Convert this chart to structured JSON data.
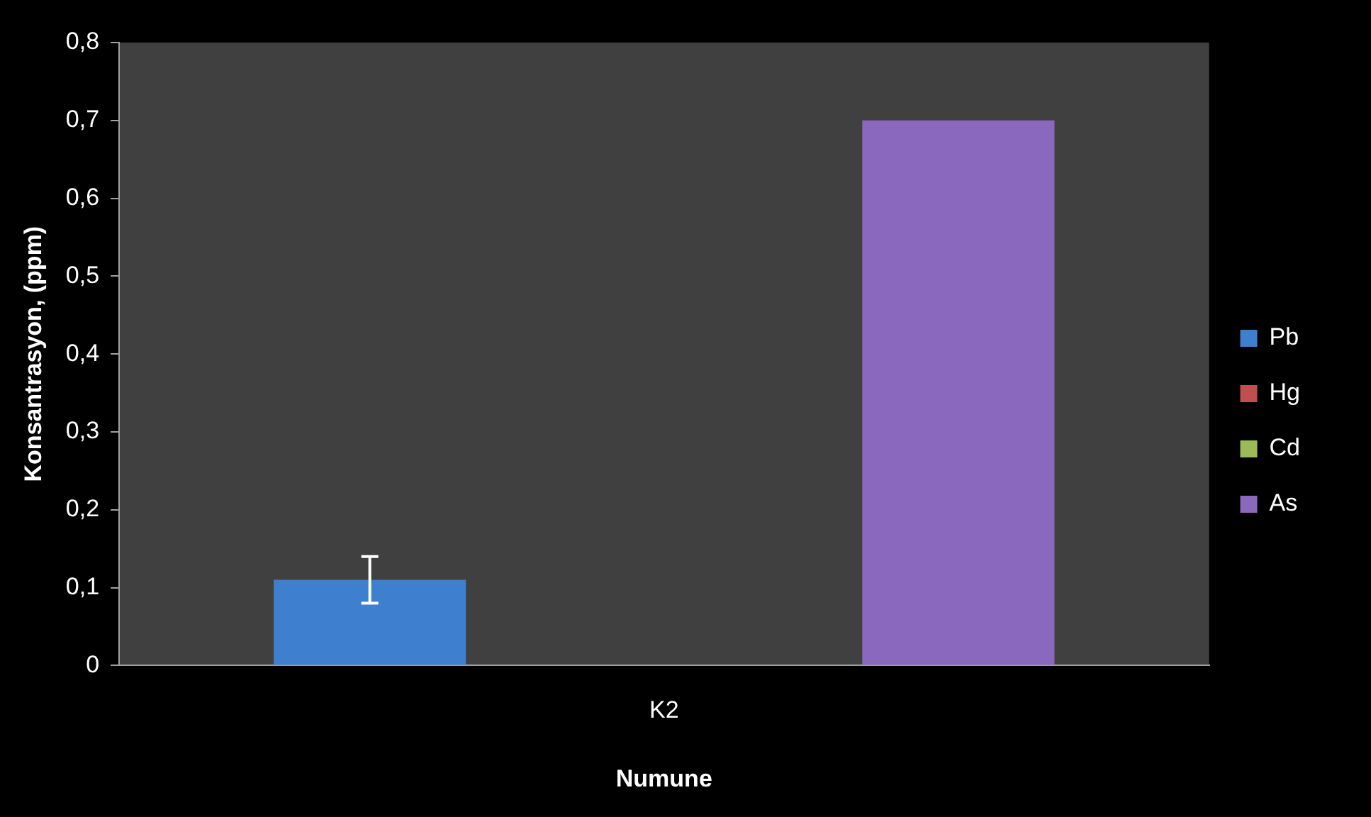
{
  "chart_data": {
    "type": "bar",
    "xlabel": "Numune",
    "ylabel": "Konsantrasyon, (ppm)",
    "categories": [
      "K2"
    ],
    "series": [
      {
        "name": "Pb",
        "color": "#3f7fcf",
        "values": [
          0.11
        ],
        "errors": [
          0.03
        ]
      },
      {
        "name": "Hg",
        "color": "#c0504d",
        "values": [
          0
        ]
      },
      {
        "name": "Cd",
        "color": "#9bbb59",
        "values": [
          0
        ]
      },
      {
        "name": "As",
        "color": "#8a68bd",
        "values": [
          0.7
        ]
      }
    ],
    "ylim": [
      0,
      0.8
    ],
    "yticks": [
      0,
      {
        "value": 0.1,
        "label": "0,1"
      },
      {
        "value": 0.2,
        "label": "0,2"
      },
      {
        "value": 0.3,
        "label": "0,3"
      },
      {
        "value": 0.4,
        "label": "0,4"
      },
      {
        "value": 0.5,
        "label": "0,5"
      },
      {
        "value": 0.6,
        "label": "0,6"
      },
      {
        "value": 0.7,
        "label": "0,7"
      },
      {
        "value": 0.8,
        "label": "0,8"
      }
    ],
    "grid": false,
    "legend": "right"
  }
}
